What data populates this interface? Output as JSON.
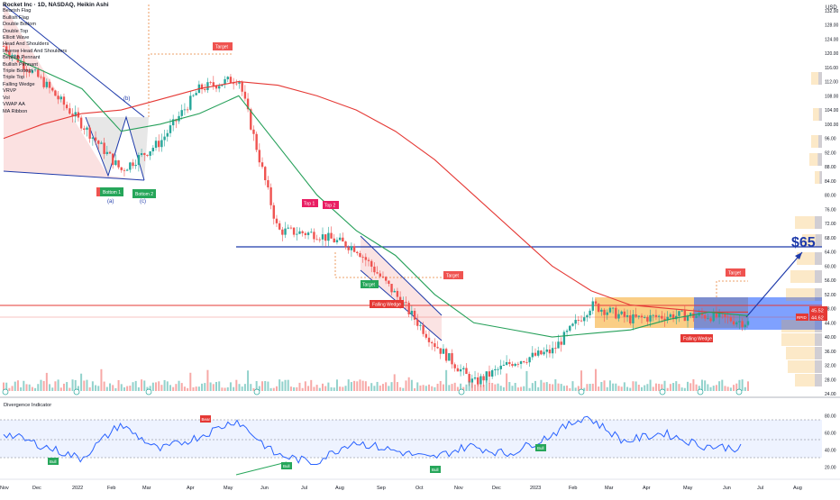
{
  "symbol_header": "Rocket Inc · 1D, NASDAQ, Heikin Ashi",
  "indicator_legend": [
    "Bearish Flag",
    "Bullish Flag",
    "Double Bottom",
    "Double Top",
    "Elliott Wave",
    "Head And Shoulders",
    "Inverse Head And Shoulders",
    "Bearish Pennant",
    "Bullish Pennant",
    "Triple Bottom",
    "Triple Top",
    "Falling Wedge",
    "VRVP",
    "Vol",
    "VWAP AA",
    "MA Ribbon"
  ],
  "currency": "USD",
  "price_axis": {
    "ticks": [
      "132.00",
      "128.00",
      "124.00",
      "120.00",
      "116.00",
      "112.00",
      "108.00",
      "104.00",
      "100.00",
      "96.00",
      "92.00",
      "88.00",
      "84.00",
      "80.00",
      "76.00",
      "72.00",
      "68.00",
      "64.00",
      "60.00",
      "56.00",
      "52.00",
      "48.00",
      "44.00",
      "40.00",
      "36.00",
      "32.00",
      "28.00",
      "24.00"
    ]
  },
  "price_labels": {
    "last": "45.52",
    "ref": "44.62",
    "ref_tag": "RPID"
  },
  "time_axis": [
    "Nov",
    "Dec",
    "2022",
    "Feb",
    "Mar",
    "Apr",
    "May",
    "Jun",
    "Jul",
    "Aug",
    "Sep",
    "Oct",
    "Nov",
    "Dec",
    "2023",
    "Feb",
    "Mar",
    "Apr",
    "May",
    "Jun",
    "Jul",
    "Aug"
  ],
  "annotations": {
    "target_price": "$65",
    "targets": [
      "Target",
      "Target",
      "Target"
    ],
    "bottom1": "Bottom 1",
    "bottom2": "Bottom 2",
    "top1": "Top 1",
    "top2": "Top 2",
    "target_green": "Target",
    "falling_wedge_1": "Falling Wedge",
    "falling_wedge_2": "Falling Wedge",
    "wave_a": "(a)",
    "wave_b": "(b)",
    "wave_c": "(c)"
  },
  "oscillator": {
    "title": "Divergence Indicator",
    "axis": [
      "80.00",
      "60.00",
      "40.00",
      "20.00"
    ],
    "bear": "Bear",
    "bulls": [
      "Bull",
      "Bull",
      "Bull",
      "Bull"
    ]
  },
  "colors": {
    "up": "#26a69a",
    "down": "#ef5350",
    "ma_long": "#e53935",
    "ma_short": "#26a05a",
    "trend": "#1e3aaa",
    "osc": "#2962ff"
  },
  "chart_data": {
    "type": "line",
    "title": "Rocket Inc · 1D, NASDAQ, Heikin Ashi",
    "xlabel": "",
    "ylabel": "USD",
    "ylim": [
      24,
      134
    ],
    "x": [
      "Nov",
      "Dec",
      "2022",
      "Feb",
      "Mar",
      "Apr",
      "May",
      "Jun",
      "Jul",
      "Aug",
      "Sep",
      "Oct",
      "Nov",
      "Dec",
      "2023",
      "Feb",
      "Mar",
      "Apr",
      "May",
      "Jun"
    ],
    "series": [
      {
        "values": [
          122,
          112,
          100,
          87,
          95,
          110,
          113,
          70,
          69,
          65,
          52,
          38,
          27,
          33,
          36,
          49,
          45,
          46,
          46,
          44
        ]
      },
      {
        "values": [
          120,
          115,
          110,
          98,
          100,
          103,
          108,
          94,
          80,
          70,
          63,
          52,
          44,
          42,
          40,
          41,
          42,
          45,
          47,
          46
        ]
      },
      {
        "values": [
          96,
          100,
          103,
          104,
          107,
          110,
          112,
          111,
          108,
          104,
          98,
          90,
          80,
          70,
          60,
          53,
          49,
          48,
          47,
          47
        ]
      }
    ],
    "projection": {
      "from": 44,
      "to": 65
    },
    "oscillator_values": [
      60,
      45,
      30,
      70,
      40,
      55,
      75,
      35,
      25,
      50,
      40,
      30,
      45,
      35,
      55,
      80,
      50,
      60,
      45,
      42
    ]
  }
}
